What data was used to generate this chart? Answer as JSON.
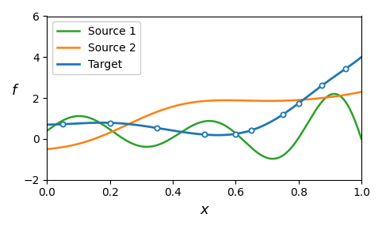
{
  "title": "",
  "xlabel": "x",
  "ylabel": "f",
  "xlim": [
    0.0,
    1.0
  ],
  "ylim": [
    -2.0,
    6.0
  ],
  "yticks": [
    -2,
    0,
    2,
    4,
    6
  ],
  "xticks": [
    0.0,
    0.2,
    0.4,
    0.6,
    0.8,
    1.0
  ],
  "source1_color": "#2ca02c",
  "source2_color": "#ff7f0e",
  "target_color": "#1f77b4",
  "marker_color": "#1f77b4",
  "legend_entries": [
    "Source 1",
    "Source 2",
    "Target"
  ],
  "marker_x": [
    0.05,
    0.2,
    0.35,
    0.5,
    0.6,
    0.65,
    0.75,
    0.8,
    0.875,
    0.95
  ],
  "figsize": [
    4.82,
    2.9
  ],
  "dpi": 100
}
